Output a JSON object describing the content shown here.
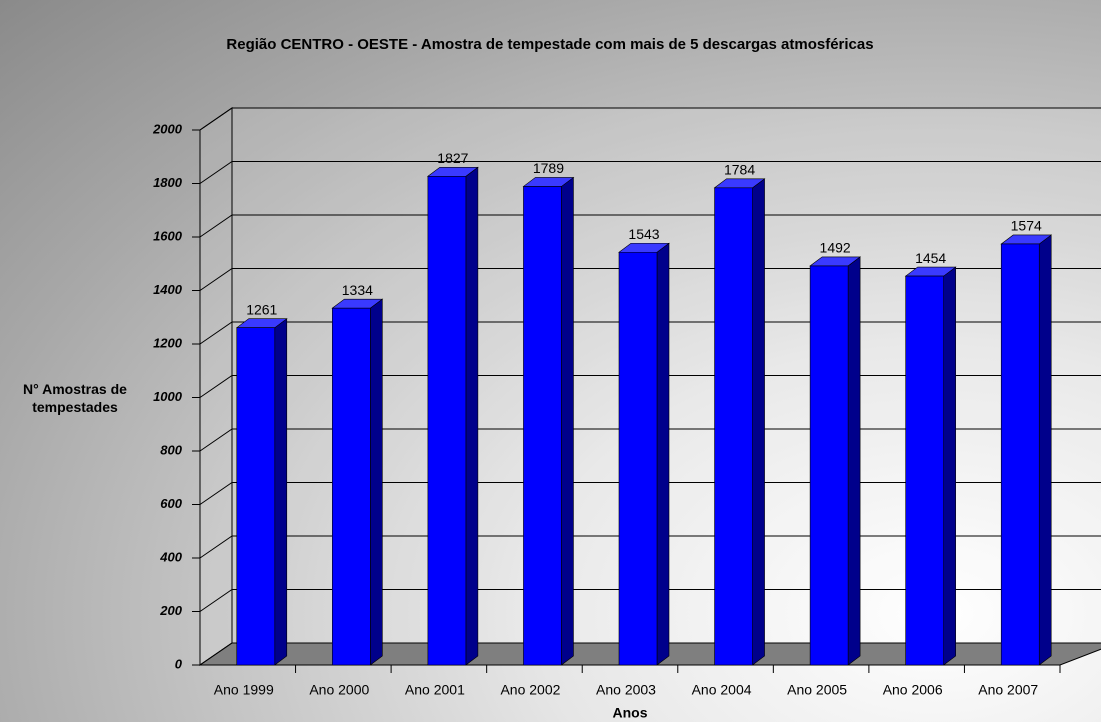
{
  "chart_data": {
    "type": "bar",
    "title": "Região CENTRO - OESTE - Amostra de tempestade com mais de 5 descargas atmosféricas",
    "y_label": "N° Amostras de tempestades",
    "x_label": "Anos",
    "categories": [
      "Ano 1999",
      "Ano 2000",
      "Ano 2001",
      "Ano 2002",
      "Ano 2003",
      "Ano 2004",
      "Ano 2005",
      "Ano 2006",
      "Ano 2007"
    ],
    "values": [
      1261,
      1334,
      1827,
      1789,
      1543,
      1784,
      1492,
      1454,
      1574
    ],
    "color": "#0000ff",
    "ylim": [
      0,
      2000
    ],
    "yticks": [
      0,
      200,
      400,
      600,
      800,
      1000,
      1200,
      1400,
      1600,
      1800,
      2000
    ],
    "grid": true
  }
}
